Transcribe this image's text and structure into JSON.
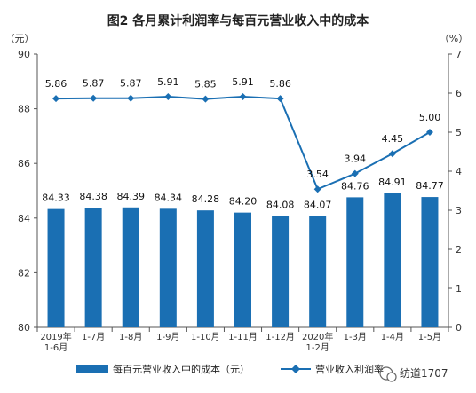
{
  "chart_data": {
    "type": "bar",
    "title": "图2  各月累计利润率与每百元营业收入中的成本",
    "left_axis_unit": "（元）",
    "right_axis_unit": "（%）",
    "categories": [
      [
        "2019年",
        "1-6月"
      ],
      [
        "1-7月"
      ],
      [
        "1-8月"
      ],
      [
        "1-9月"
      ],
      [
        "1-10月"
      ],
      [
        "1-11月"
      ],
      [
        "1-12月"
      ],
      [
        "2020年",
        "1-2月"
      ],
      [
        "1-3月"
      ],
      [
        "1-4月"
      ],
      [
        "1-5月"
      ]
    ],
    "series": [
      {
        "name": "每百元营业收入中的成本（元）",
        "type": "bar",
        "axis": "left",
        "color": "#1a6fb3",
        "values": [
          84.33,
          84.38,
          84.39,
          84.34,
          84.28,
          84.2,
          84.08,
          84.07,
          84.76,
          84.91,
          84.77
        ],
        "labels": [
          "84.33",
          "84.38",
          "84.39",
          "84.34",
          "84.28",
          "84.20",
          "84.08",
          "84.07",
          "84.76",
          "84.91",
          "84.77"
        ]
      },
      {
        "name": "营业收入利润率",
        "type": "line",
        "axis": "right",
        "color": "#1a6fb3",
        "values": [
          5.86,
          5.87,
          5.87,
          5.91,
          5.85,
          5.91,
          5.86,
          3.54,
          3.94,
          4.45,
          5.0
        ],
        "labels": [
          "5.86",
          "5.87",
          "5.87",
          "5.91",
          "5.85",
          "5.91",
          "5.86",
          "3.54",
          "3.94",
          "4.45",
          "5.00"
        ]
      }
    ],
    "left_axis": {
      "min": 80,
      "max": 90,
      "ticks": [
        "80",
        "82",
        "84",
        "86",
        "88",
        "90"
      ]
    },
    "right_axis": {
      "min": 0,
      "max": 7,
      "ticks": [
        "0",
        "1",
        "2",
        "3",
        "4",
        "5",
        "6",
        "7"
      ]
    },
    "grid": false,
    "legend_position": "bottom"
  },
  "watermark": "纺道1707"
}
